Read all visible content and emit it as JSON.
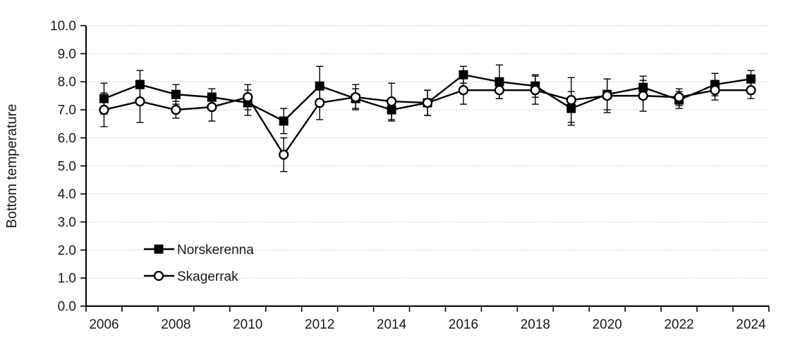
{
  "chart_data": {
    "type": "line",
    "title": "",
    "xlabel": "",
    "ylabel": "Bottom temperature",
    "ylim": [
      0.0,
      10.0
    ],
    "ytick_labels": [
      "0.0",
      "1.0",
      "2.0",
      "3.0",
      "4.0",
      "5.0",
      "6.0",
      "7.0",
      "8.0",
      "9.0",
      "10.0"
    ],
    "x_categories": [
      2006,
      2007,
      2008,
      2009,
      2010,
      2011,
      2012,
      2013,
      2014,
      2015,
      2016,
      2017,
      2018,
      2019,
      2020,
      2021,
      2022,
      2023,
      2024
    ],
    "xtick_labels_shown": [
      "2006",
      "2008",
      "2010",
      "2012",
      "2014",
      "2016",
      "2018",
      "2020",
      "2022",
      "2024"
    ],
    "grid": "horizontal-dotted",
    "gridline_color": "#c9c9c9",
    "axis_color": "#000000",
    "legend_position": "inside-lower-left",
    "series": [
      {
        "name": "Norskerenna",
        "marker": "filled-square",
        "color": "#000000",
        "values": [
          7.4,
          7.9,
          7.55,
          7.45,
          7.25,
          6.6,
          7.85,
          7.4,
          7.0,
          7.25,
          8.25,
          8.0,
          7.85,
          7.05,
          7.55,
          7.8,
          7.35,
          7.9,
          8.1
        ],
        "error": [
          0.55,
          0.5,
          0.35,
          0.3,
          0.45,
          0.45,
          0.7,
          0.35,
          0.4,
          0.45,
          0.3,
          0.6,
          0.4,
          0.6,
          0.55,
          0.4,
          0.3,
          0.4,
          0.3
        ]
      },
      {
        "name": "Skagerrak",
        "marker": "open-circle",
        "color": "#000000",
        "values": [
          7.0,
          7.3,
          7.0,
          7.1,
          7.45,
          5.4,
          7.25,
          7.45,
          7.3,
          7.25,
          7.7,
          7.7,
          7.7,
          7.35,
          7.5,
          7.5,
          7.45,
          7.7,
          7.7
        ],
        "error": [
          0.6,
          0.75,
          0.3,
          0.5,
          0.45,
          0.6,
          0.6,
          0.45,
          0.65,
          0.45,
          0.5,
          0.3,
          0.5,
          0.8,
          0.6,
          0.55,
          0.3,
          0.35,
          0.3
        ]
      }
    ]
  }
}
